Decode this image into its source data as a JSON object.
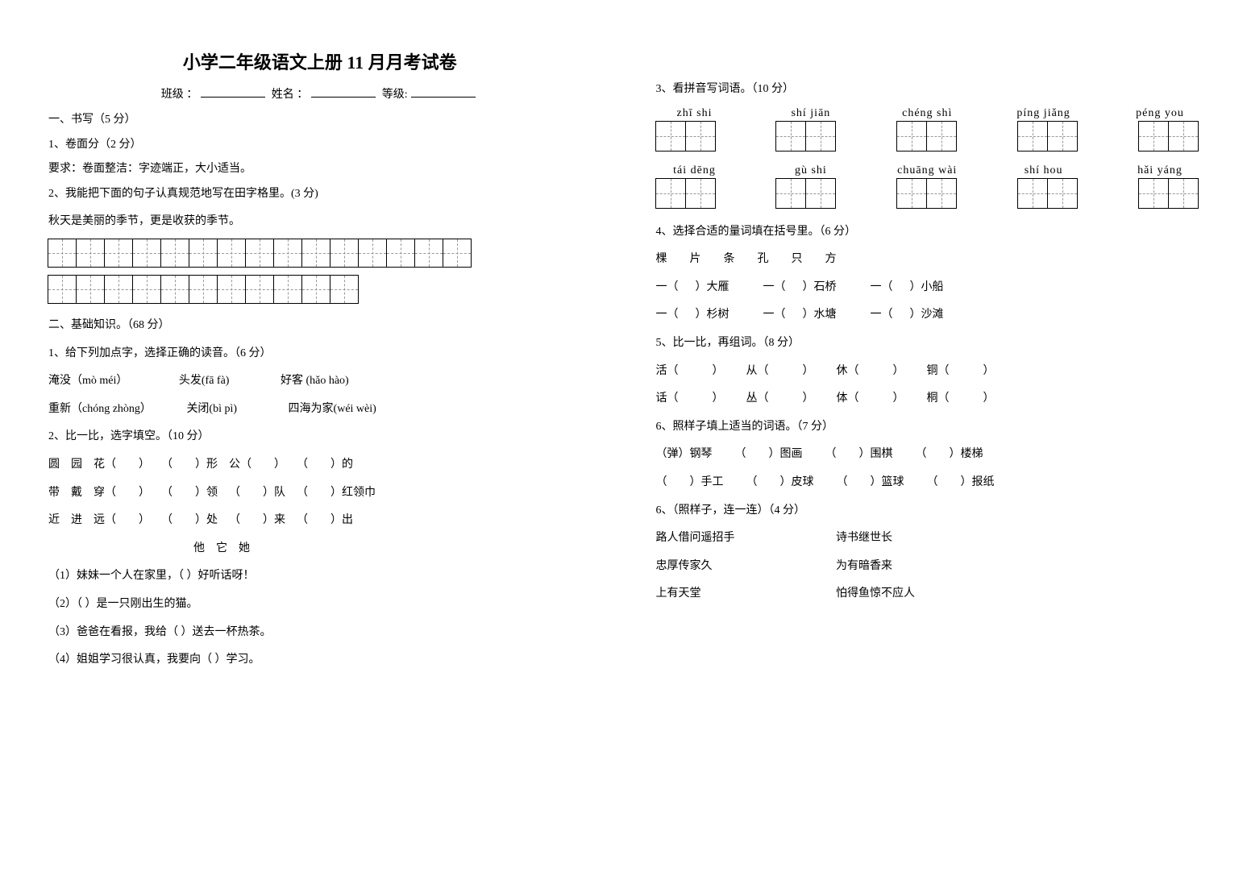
{
  "title": "小学二年级语文上册 11 月月考试卷",
  "header": {
    "class_label": "班级 ：",
    "name_label": "姓名 ：",
    "grade_label": "等级:"
  },
  "sec1": {
    "head": "一、书写（5 分）",
    "q1": "1、卷面分（2 分）",
    "q1_detail": "要求：卷面整洁：字迹端正，大小适当。",
    "q2": "2、我能把下面的句子认真规范地写在田字格里。(3 分)",
    "sentence": "秋天是美丽的季节，更是收获的季节。",
    "grid_rows": [
      15,
      11
    ]
  },
  "sec2": {
    "head": "二、基础知识。（68 分）",
    "q1": "1、给下列加点字，选择正确的读音。（6 分）",
    "q1_items": [
      [
        "淹没（mò    méi）",
        "头发(fā    fà)",
        "好客 (hǎo    hào)"
      ],
      [
        "重新（chóng    zhòng）",
        "关闭(bì    pì)",
        "四海为家(wéi    wèi)"
      ]
    ],
    "q2": "2、比一比，选字填空。（10 分）",
    "q2_rows": [
      "圆    园    花（        ）    （        ）形    公（        ）    （        ）的",
      "带    戴    穿（        ）    （        ）领    （        ）队    （        ）红领巾",
      "近    进    远（        ）    （        ）处    （        ）来    （        ）出"
    ],
    "q2_sub_head": "他    它    她",
    "q2_subs": [
      "（1）妹妹一个人在家里，（        ）好听话呀！",
      "（2）（        ）是一只刚出生的猫。",
      "（3）爸爸在看报，我给（        ）送去一杯热茶。",
      "（4）姐姐学习很认真，我要向（        ）学习。"
    ],
    "q3": "3、看拼音写词语。（10 分）",
    "q3_pinyin_row1": [
      "zhī  shi",
      "shí  jiān",
      "chéng  shì",
      "píng  jiǎng",
      "péng  you"
    ],
    "q3_pinyin_row2": [
      "tái  dēng",
      "gù  shi",
      "chuāng wài",
      "shí  hou",
      "hǎi  yáng"
    ],
    "q4": "4、选择合适的量词填在括号里。（6 分）",
    "q4_words": "棵        片        条        孔        只        方",
    "q4_rows": [
      "一（      ）大雁            一（      ）石桥            一（      ）小船",
      "一（      ）杉树            一（      ）水塘            一（      ）沙滩"
    ],
    "q5": "5、比一比，再组词。（8 分）",
    "q5_rows": [
      "活（            ）        从（            ）        休（            ）        铜（            ）",
      "话（            ）        丛（            ）        体（            ）        桐（            ）"
    ],
    "q6": "6、照样子填上适当的词语。（7 分）",
    "q6_rows": [
      "（弹）钢琴        （        ）图画        （        ）围棋        （        ）楼梯",
      "（        ）手工        （        ）皮球        （        ）篮球        （        ）报纸"
    ],
    "q6b": "6、（照样子，连一连）（4 分）",
    "q6b_rows": [
      [
        "路人借问遥招手",
        "诗书继世长"
      ],
      [
        "忠厚传家久",
        "为有暗香来"
      ],
      [
        "上有天堂",
        "怕得鱼惊不应人"
      ]
    ]
  }
}
